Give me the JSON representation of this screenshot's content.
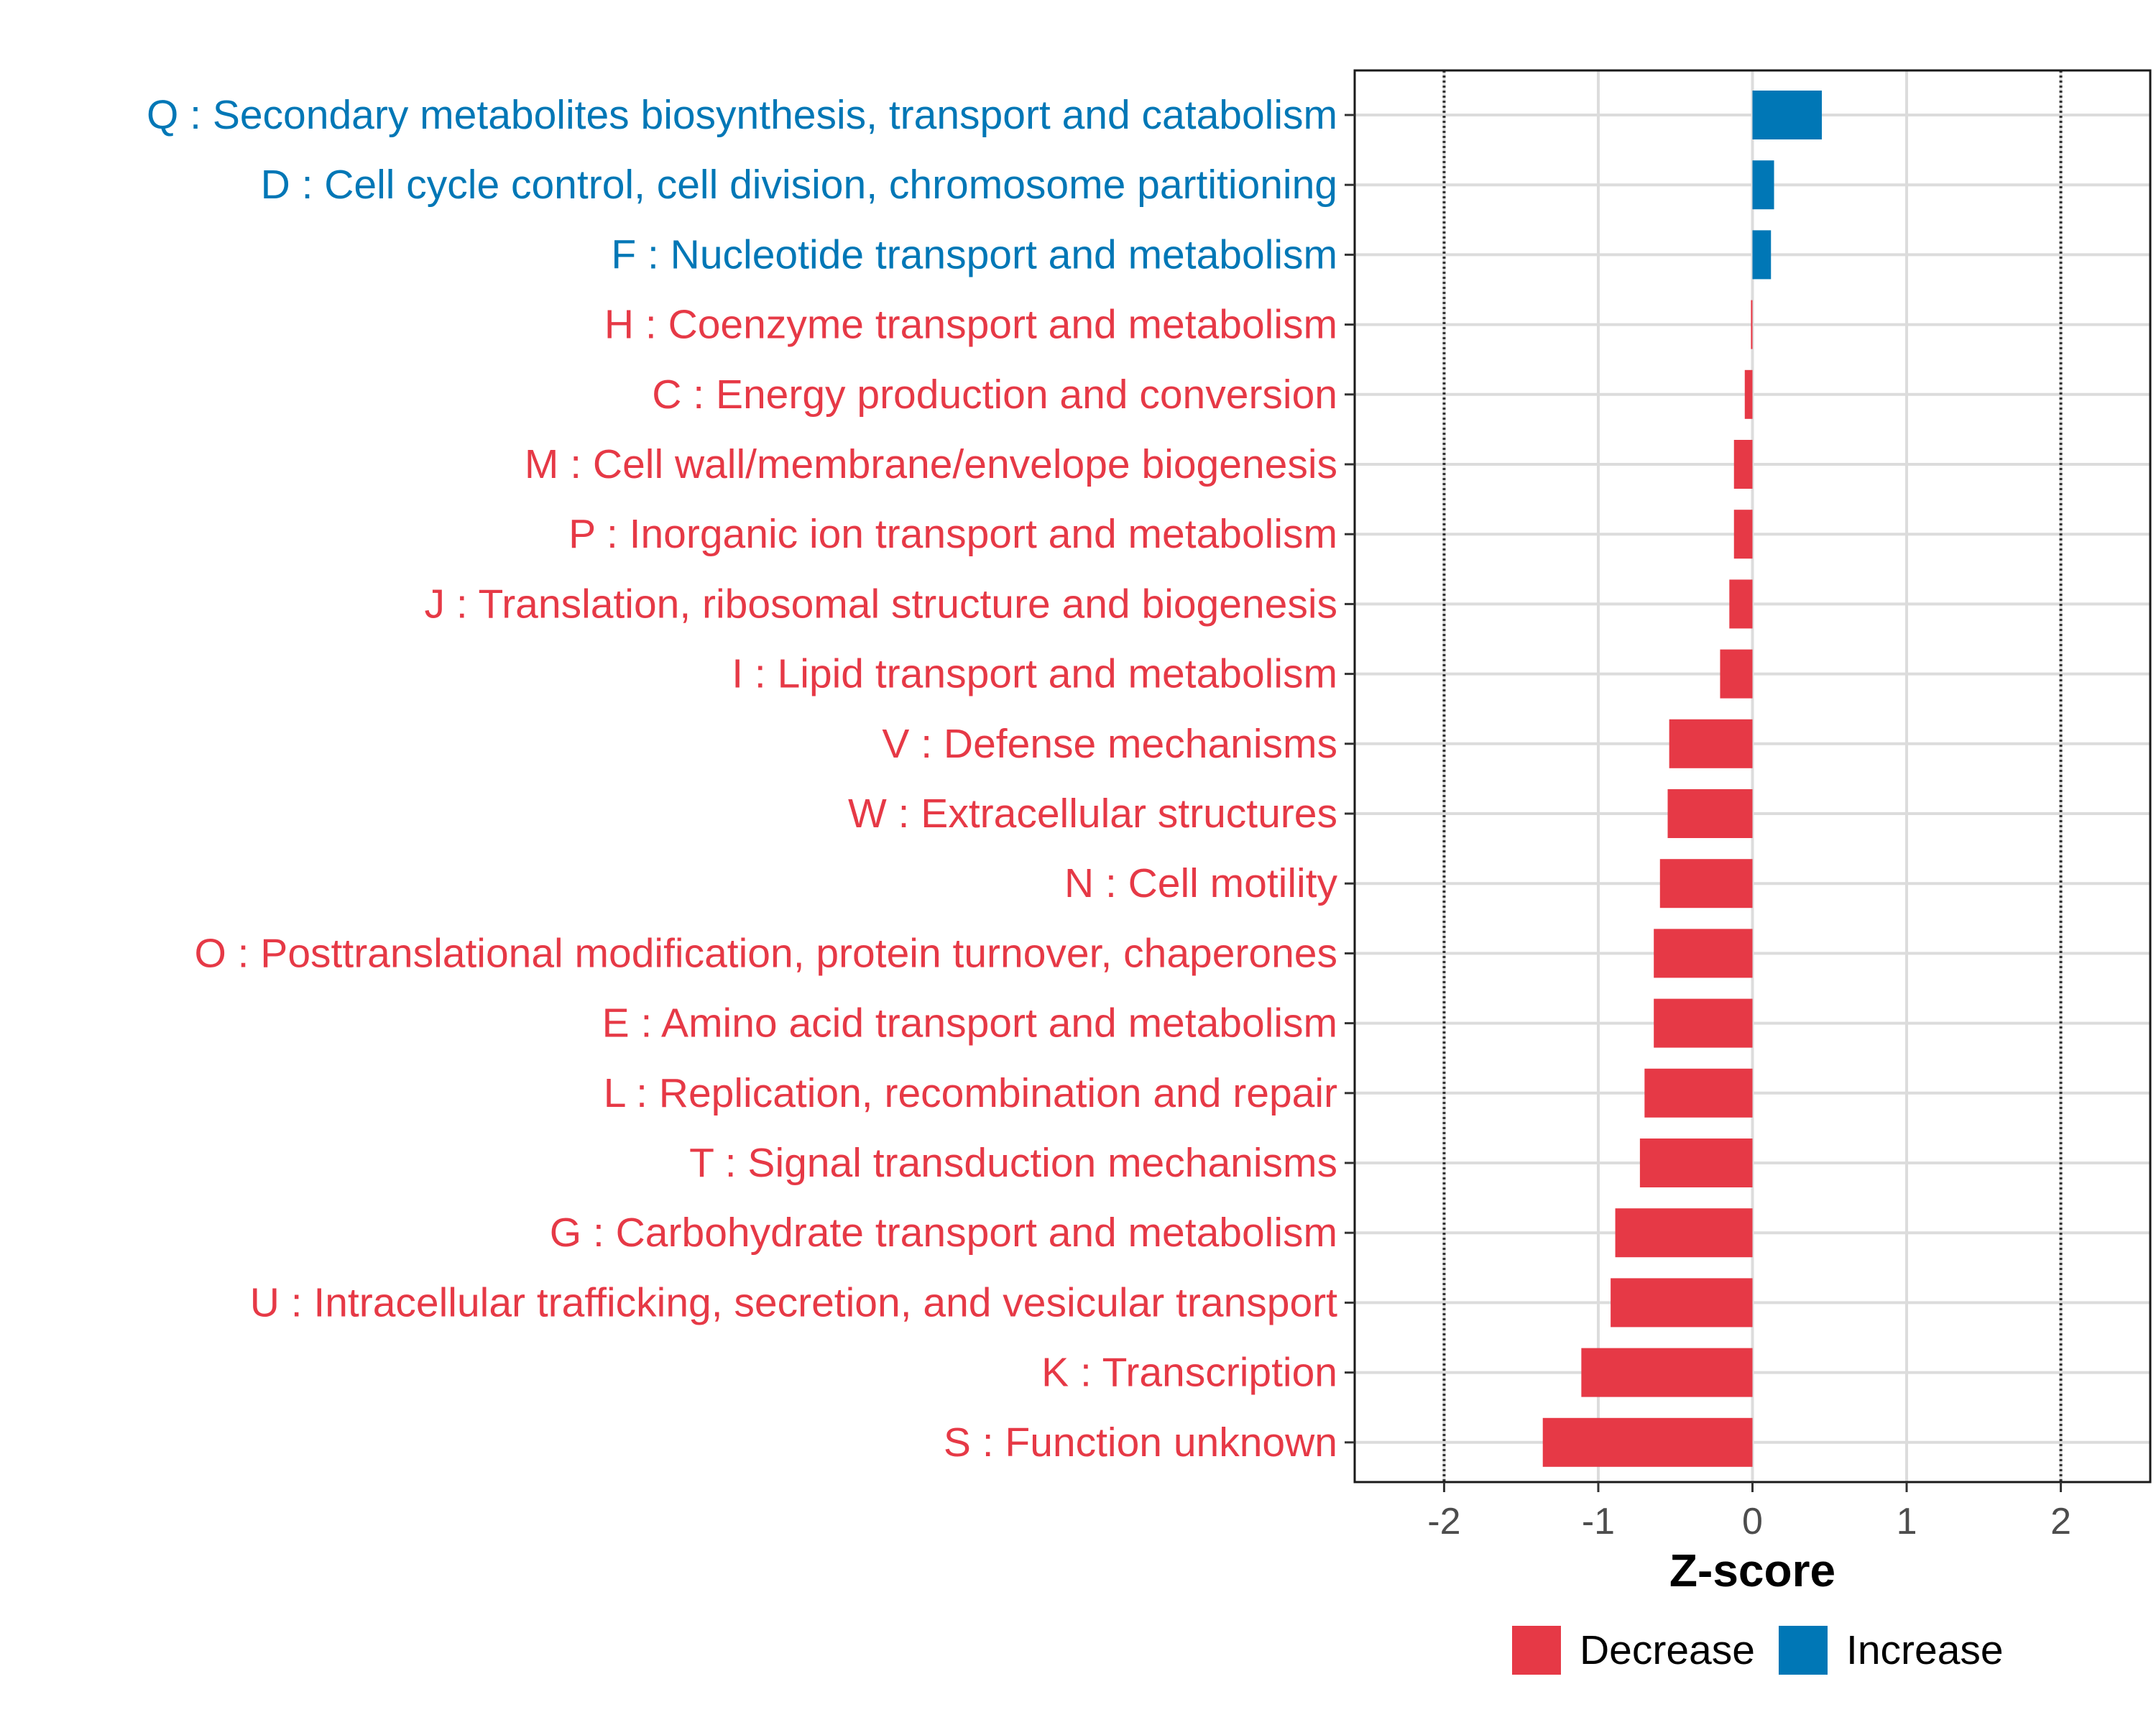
{
  "chart_data": {
    "type": "bar",
    "orientation": "horizontal",
    "xlabel": "Z-score",
    "ylabel": "",
    "xlim": [
      -2.58,
      2.58
    ],
    "x_ticks": [
      -2,
      -1,
      0,
      1,
      2
    ],
    "x_tick_labels": [
      "-2",
      "-1",
      "0",
      "1",
      "2"
    ],
    "reference_lines": [
      -2,
      2
    ],
    "grid": true,
    "legend": {
      "position": "bottom-right",
      "entries": [
        {
          "label": "Decrease",
          "color": "#E63946"
        },
        {
          "label": "Increase",
          "color": "#0077B6"
        }
      ]
    },
    "categories": [
      "Q : Secondary metabolites biosynthesis, transport and catabolism",
      "D : Cell cycle control, cell division, chromosome partitioning",
      "F : Nucleotide transport and metabolism",
      "H : Coenzyme transport and metabolism",
      "C : Energy production and conversion",
      "M : Cell wall/membrane/envelope biogenesis",
      "P : Inorganic ion transport and metabolism",
      "J : Translation, ribosomal structure and biogenesis",
      "I : Lipid transport and metabolism",
      "V : Defense mechanisms",
      "W : Extracellular structures",
      "N : Cell motility",
      "O : Posttranslational modification, protein turnover, chaperones",
      "E : Amino acid transport and metabolism",
      "L : Replication, recombination and repair",
      "T : Signal transduction mechanisms",
      "G : Carbohydrate transport and metabolism",
      "U : Intracellular trafficking, secretion, and vesicular transport",
      "K : Transcription",
      "S : Function unknown"
    ],
    "values": [
      0.45,
      0.14,
      0.12,
      -0.01,
      -0.05,
      -0.12,
      -0.12,
      -0.15,
      -0.21,
      -0.54,
      -0.55,
      -0.6,
      -0.64,
      -0.64,
      -0.7,
      -0.73,
      -0.89,
      -0.92,
      -1.11,
      -1.36
    ],
    "groups": [
      "Increase",
      "Increase",
      "Increase",
      "Decrease",
      "Decrease",
      "Decrease",
      "Decrease",
      "Decrease",
      "Decrease",
      "Decrease",
      "Decrease",
      "Decrease",
      "Decrease",
      "Decrease",
      "Decrease",
      "Decrease",
      "Decrease",
      "Decrease",
      "Decrease",
      "Decrease"
    ]
  }
}
